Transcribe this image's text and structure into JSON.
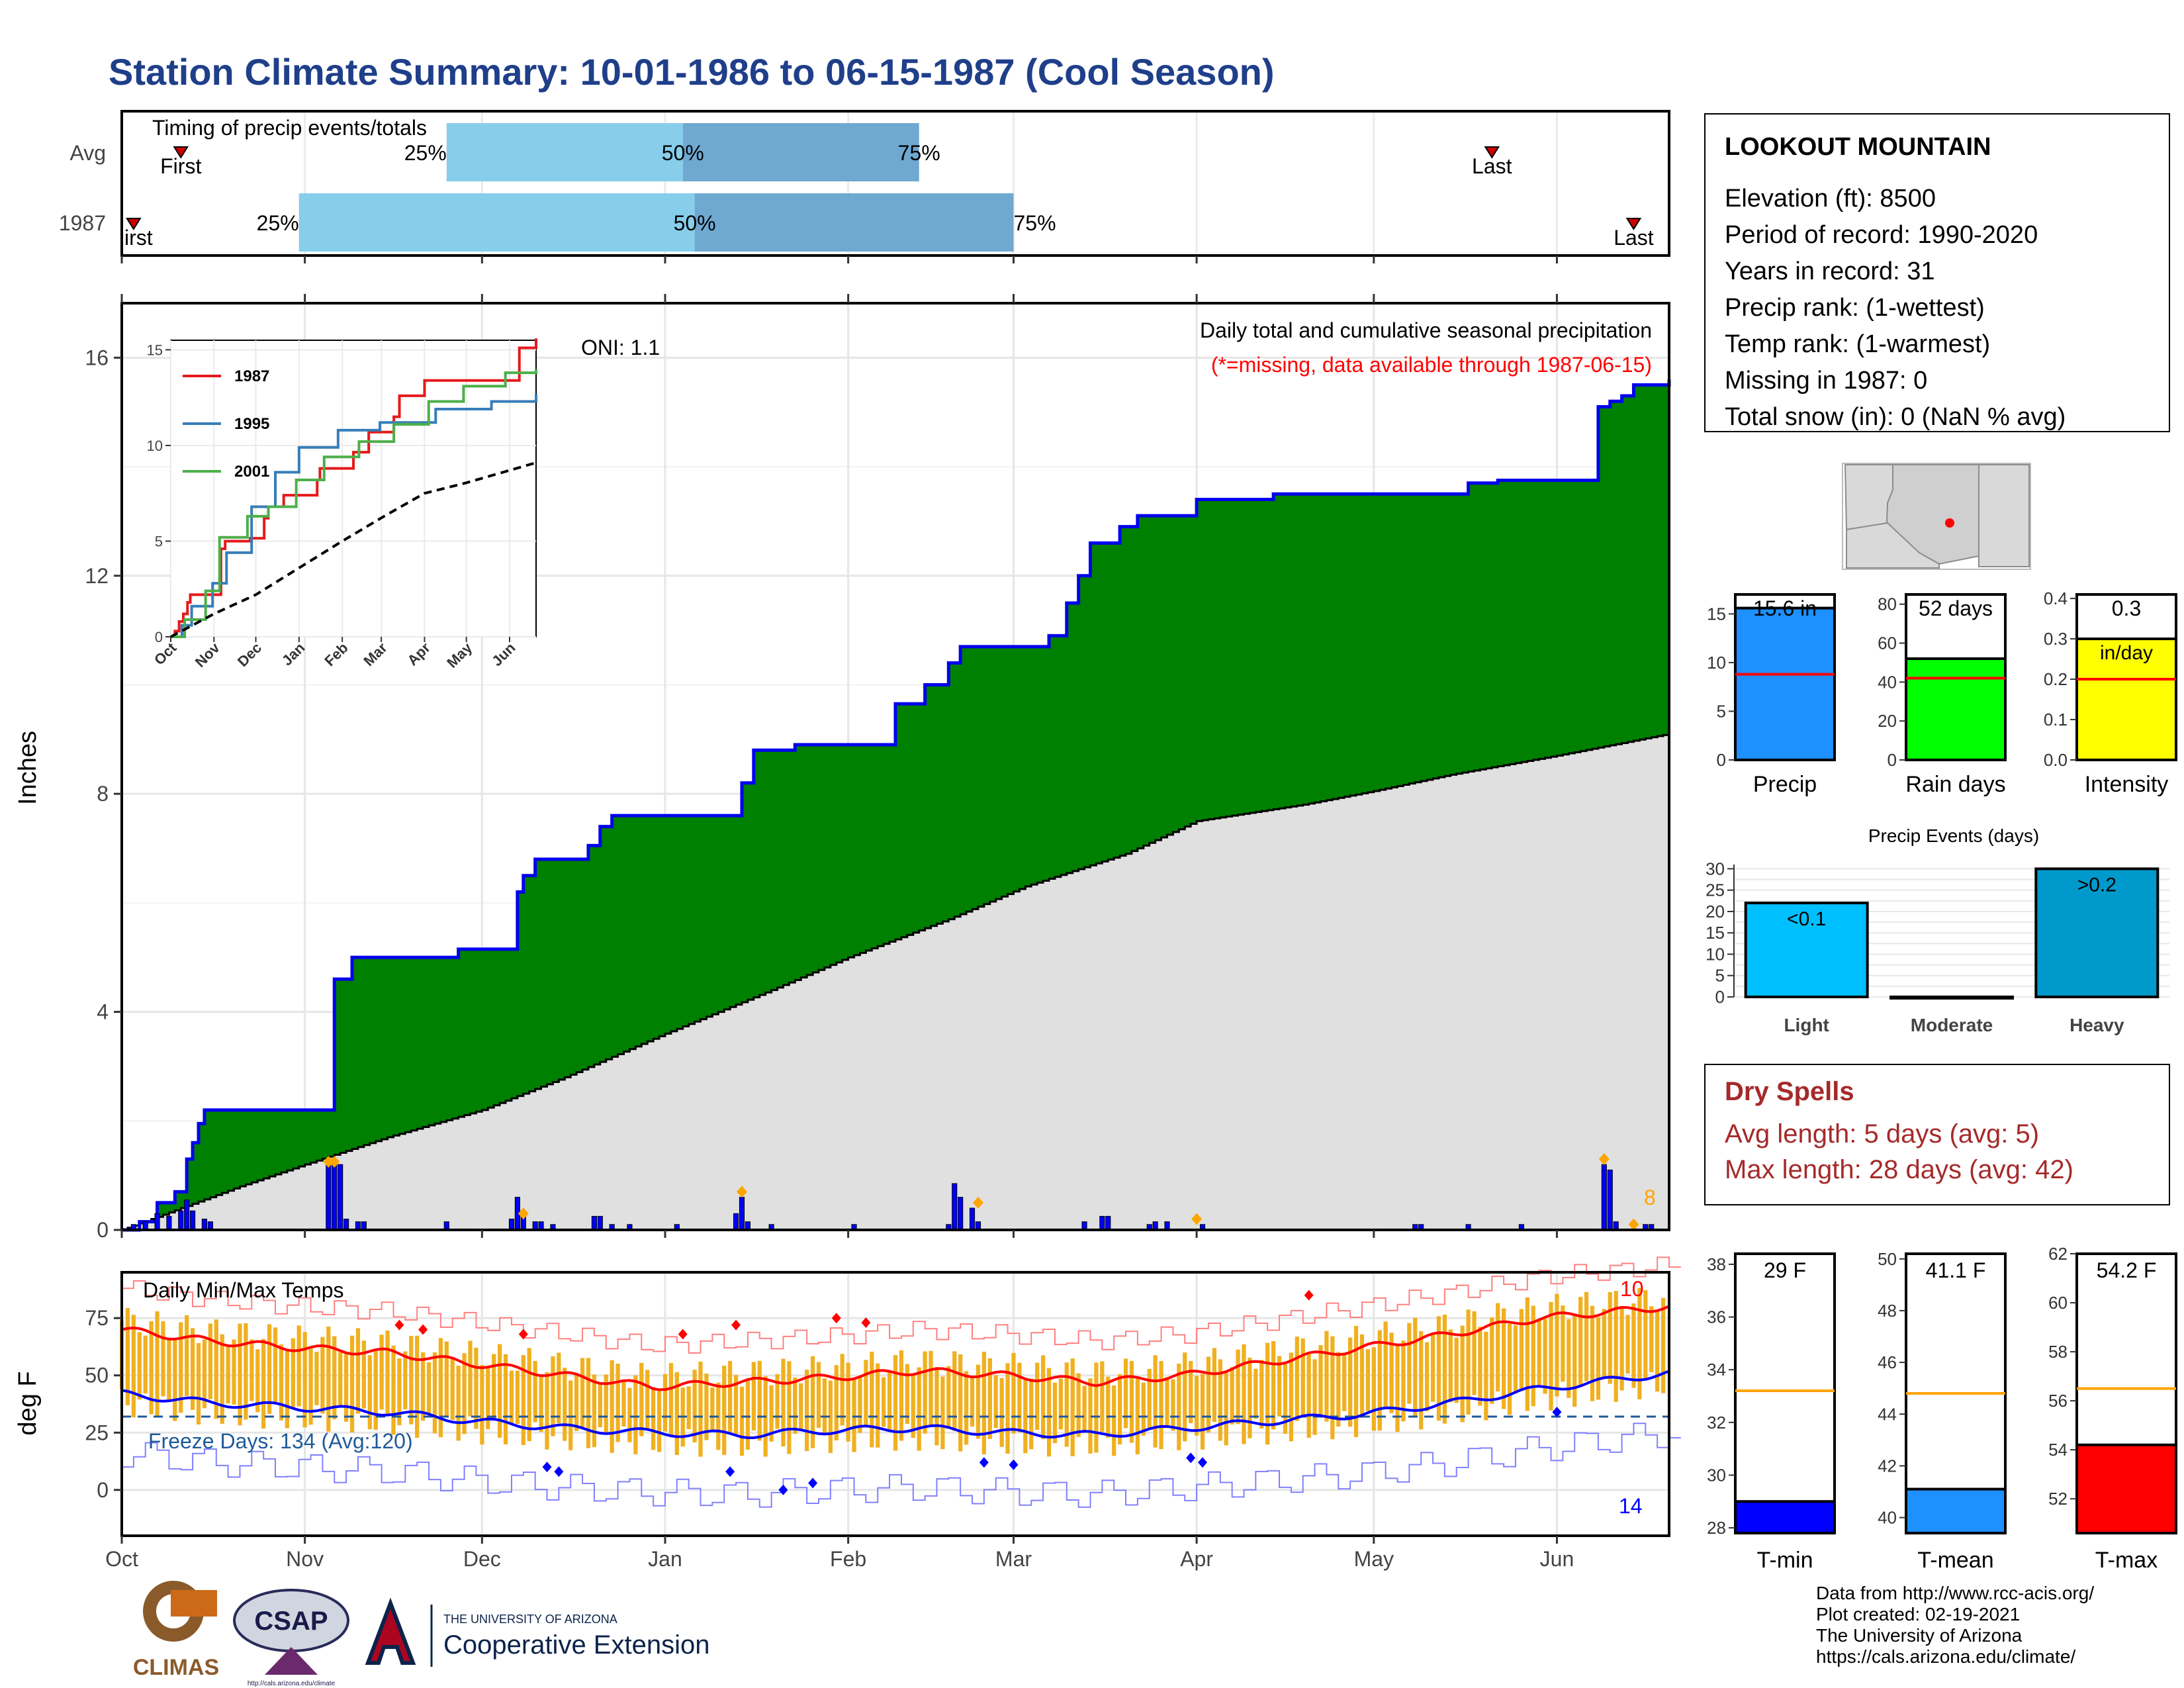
{
  "title": "Station Climate Summary: 10-01-1986 to 06-15-1987 (Cool Season)",
  "colors": {
    "title": "#1f3f8a",
    "cum_fill": "#008000",
    "cum_line": "#0000ee",
    "avg_fill": "#e0e0e0",
    "daily_bar": "#0000ff",
    "marker_orange": "#ffa500",
    "tmax": "#ff0000",
    "tmin": "#0000ff",
    "temp_bar": "#f0b020",
    "dry_spell": "#a52a2a",
    "light_blue": "#87ceeb",
    "mid_blue": "#6fa8d0"
  },
  "timing": {
    "label": "Timing of precip events/totals",
    "rows": [
      "Avg",
      "1987"
    ],
    "pct_labels": [
      "25%",
      "50%",
      "75%"
    ],
    "first_label": "First",
    "first_label_clipped": "irst",
    "last_label": "Last"
  },
  "main": {
    "ylabel": "Inches",
    "oni": "ONI: 1.1",
    "note1": "Daily total and cumulative seasonal precipitation",
    "note2": "(*=missing, data available through 1987-06-15)",
    "yticks": [
      "0",
      "4",
      "8",
      "12",
      "16"
    ],
    "count_label": "8"
  },
  "inset": {
    "yticks": [
      "0",
      "5",
      "10",
      "15"
    ],
    "months": [
      "Oct",
      "Nov",
      "Dec",
      "Jan",
      "Feb",
      "Mar",
      "Apr",
      "May",
      "Jun"
    ],
    "legend": [
      "1987",
      "1995",
      "2001"
    ]
  },
  "temp": {
    "label": "Daily Min/Max Temps",
    "ylabel": "deg F",
    "yticks": [
      "0",
      "25",
      "50",
      "75"
    ],
    "freeze": "Freeze Days: 134 (Avg:120)",
    "hot_count": "10",
    "cold_count": "14"
  },
  "months": [
    "Oct",
    "Nov",
    "Dec",
    "Jan",
    "Feb",
    "Mar",
    "Apr",
    "May",
    "Jun"
  ],
  "station": {
    "name": "LOOKOUT MOUNTAIN",
    "lines": [
      "Elevation (ft): 8500",
      "Period of record: 1990-2020",
      "Years in record: 31",
      "Precip rank:  (1-wettest)",
      "Temp rank:  (1-warmest)",
      "Missing in 1987: 0",
      "Total snow (in): 0 (NaN % avg)"
    ]
  },
  "mini_bars": [
    {
      "label": "Precip",
      "value_text": "15.6 in",
      "yticks": [
        "0",
        "5",
        "10",
        "15"
      ]
    },
    {
      "label": "Rain days",
      "value_text": "52 days",
      "yticks": [
        "0",
        "20",
        "40",
        "60",
        "80"
      ]
    },
    {
      "label": "Intensity",
      "value_text": "0.3",
      "unit": "in/day",
      "yticks": [
        "0.0",
        "0.1",
        "0.2",
        "0.3",
        "0.4"
      ]
    }
  ],
  "events": {
    "title": "Precip Events (days)",
    "yticks": [
      "0",
      "5",
      "10",
      "15",
      "20",
      "25",
      "30"
    ],
    "categories": [
      "Light",
      "Moderate",
      "Heavy"
    ],
    "bar_labels": [
      "<0.1",
      "",
      ">0.2"
    ]
  },
  "dry_spells": {
    "title": "Dry Spells",
    "avg": "Avg length: 5 days (avg: 5)",
    "max": "Max length: 28 days (avg: 42)"
  },
  "temp_bars": [
    {
      "label": "T-min",
      "value_text": "29 F",
      "yticks": [
        "28",
        "30",
        "32",
        "34",
        "36",
        "38"
      ]
    },
    {
      "label": "T-mean",
      "value_text": "41.1 F",
      "yticks": [
        "40",
        "42",
        "44",
        "46",
        "48",
        "50"
      ]
    },
    {
      "label": "T-max",
      "value_text": "54.2 F",
      "yticks": [
        "52",
        "54",
        "56",
        "58",
        "60",
        "62"
      ]
    }
  ],
  "footer": {
    "lines": [
      "Data from http://www.rcc-acis.org/",
      "Plot created: 02-19-2021",
      "The University of Arizona",
      "https://cals.arizona.edu/climate/"
    ],
    "logo_climas": "CLIMAS",
    "logo_csap": "CSAP",
    "logo_csap_url": "http://cals.arizona.edu/climate",
    "ua_line1": "THE UNIVERSITY OF ARIZONA",
    "ua_line2": "Cooperative Extension"
  },
  "chart_data": [
    {
      "type": "area",
      "name": "Daily total and cumulative seasonal precipitation",
      "x_unit": "day of season (0 = Oct 1)",
      "ylim": [
        0,
        17
      ],
      "cumulative_1987": [
        [
          0,
          0.0
        ],
        [
          3,
          0.15
        ],
        [
          6,
          0.5
        ],
        [
          9,
          0.7
        ],
        [
          11,
          1.3
        ],
        [
          12,
          1.6
        ],
        [
          13,
          1.95
        ],
        [
          14,
          2.2
        ],
        [
          35,
          2.2
        ],
        [
          36,
          4.6
        ],
        [
          39,
          5.0
        ],
        [
          56,
          5.0
        ],
        [
          57,
          5.15
        ],
        [
          66,
          5.15
        ],
        [
          67,
          6.2
        ],
        [
          68,
          6.5
        ],
        [
          70,
          6.8
        ],
        [
          78,
          6.8
        ],
        [
          79,
          7.05
        ],
        [
          81,
          7.4
        ],
        [
          83,
          7.6
        ],
        [
          104,
          7.6
        ],
        [
          105,
          8.2
        ],
        [
          107,
          8.8
        ],
        [
          114,
          8.9
        ],
        [
          130,
          8.9
        ],
        [
          131,
          9.65
        ],
        [
          136,
          10.0
        ],
        [
          140,
          10.4
        ],
        [
          142,
          10.7
        ],
        [
          153,
          10.7
        ],
        [
          157,
          10.9
        ],
        [
          160,
          11.5
        ],
        [
          162,
          12.0
        ],
        [
          164,
          12.6
        ],
        [
          169,
          12.9
        ],
        [
          172,
          13.1
        ],
        [
          182,
          13.4
        ],
        [
          195,
          13.5
        ],
        [
          228,
          13.5
        ],
        [
          228,
          13.7
        ],
        [
          233,
          13.75
        ],
        [
          249,
          13.75
        ],
        [
          250,
          15.1
        ],
        [
          252,
          15.2
        ],
        [
          254,
          15.3
        ],
        [
          256,
          15.5
        ],
        [
          262,
          15.6
        ]
      ],
      "average": [
        [
          0,
          0.0
        ],
        [
          10,
          0.4
        ],
        [
          20,
          0.8
        ],
        [
          31,
          1.2
        ],
        [
          45,
          1.7
        ],
        [
          61,
          2.2
        ],
        [
          75,
          2.8
        ],
        [
          92,
          3.6
        ],
        [
          110,
          4.4
        ],
        [
          123,
          5.0
        ],
        [
          140,
          5.7
        ],
        [
          153,
          6.3
        ],
        [
          170,
          6.9
        ],
        [
          182,
          7.5
        ],
        [
          200,
          7.8
        ],
        [
          212,
          8.05
        ],
        [
          225,
          8.35
        ],
        [
          243,
          8.7
        ],
        [
          262,
          9.1
        ]
      ],
      "daily_bars": [
        [
          2,
          0.1
        ],
        [
          4,
          0.15
        ],
        [
          6,
          0.3
        ],
        [
          8,
          0.25
        ],
        [
          10,
          0.35
        ],
        [
          11,
          0.55
        ],
        [
          12,
          0.35
        ],
        [
          14,
          0.2
        ],
        [
          15,
          0.15
        ],
        [
          35,
          1.2
        ],
        [
          36,
          1.2
        ],
        [
          37,
          1.2
        ],
        [
          38,
          0.2
        ],
        [
          40,
          0.15
        ],
        [
          41,
          0.15
        ],
        [
          55,
          0.15
        ],
        [
          66,
          0.2
        ],
        [
          67,
          0.6
        ],
        [
          68,
          0.3
        ],
        [
          70,
          0.15
        ],
        [
          71,
          0.15
        ],
        [
          73,
          0.1
        ],
        [
          80,
          0.25
        ],
        [
          81,
          0.25
        ],
        [
          83,
          0.1
        ],
        [
          86,
          0.1
        ],
        [
          94,
          0.1
        ],
        [
          104,
          0.3
        ],
        [
          105,
          0.6
        ],
        [
          106,
          0.15
        ],
        [
          110,
          0.1
        ],
        [
          124,
          0.1
        ],
        [
          140,
          0.1
        ],
        [
          141,
          0.85
        ],
        [
          142,
          0.6
        ],
        [
          144,
          0.4
        ],
        [
          145,
          0.15
        ],
        [
          163,
          0.15
        ],
        [
          166,
          0.25
        ],
        [
          167,
          0.25
        ],
        [
          174,
          0.1
        ],
        [
          175,
          0.15
        ],
        [
          177,
          0.15
        ],
        [
          183,
          0.1
        ],
        [
          219,
          0.1
        ],
        [
          220,
          0.1
        ],
        [
          228,
          0.1
        ],
        [
          237,
          0.1
        ],
        [
          251,
          1.2
        ],
        [
          252,
          1.1
        ],
        [
          253,
          0.15
        ],
        [
          258,
          0.1
        ],
        [
          259,
          0.1
        ]
      ],
      "orange_markers": [
        [
          35,
          1.25
        ],
        [
          36,
          1.25
        ],
        [
          68,
          0.3
        ],
        [
          105,
          0.7
        ],
        [
          145,
          0.5
        ],
        [
          182,
          0.2
        ],
        [
          251,
          1.3
        ],
        [
          256,
          0.1
        ]
      ]
    },
    {
      "type": "line",
      "name": "Cumulative precipitation (inset)",
      "ylim": [
        0,
        15.5
      ],
      "series": [
        {
          "name": "1987",
          "points": [
            [
              0,
              0
            ],
            [
              3,
              0.3
            ],
            [
              6,
              0.8
            ],
            [
              9,
              1.2
            ],
            [
              12,
              1.8
            ],
            [
              14,
              2.2
            ],
            [
              36,
              4.6
            ],
            [
              39,
              5.0
            ],
            [
              57,
              5.15
            ],
            [
              67,
              6.2
            ],
            [
              70,
              6.8
            ],
            [
              81,
              7.4
            ],
            [
              105,
              8.2
            ],
            [
              107,
              8.8
            ],
            [
              131,
              9.65
            ],
            [
              142,
              10.7
            ],
            [
              160,
              11.5
            ],
            [
              164,
              12.6
            ],
            [
              182,
              13.4
            ],
            [
              250,
              15.1
            ],
            [
              262,
              15.6
            ]
          ]
        },
        {
          "name": "1995",
          "points": [
            [
              0,
              0
            ],
            [
              8,
              0.6
            ],
            [
              15,
              1.6
            ],
            [
              30,
              2.8
            ],
            [
              40,
              4.4
            ],
            [
              58,
              6.8
            ],
            [
              75,
              8.6
            ],
            [
              92,
              9.9
            ],
            [
              120,
              10.8
            ],
            [
              150,
              11.2
            ],
            [
              190,
              11.9
            ],
            [
              230,
              12.3
            ],
            [
              262,
              12.7
            ]
          ]
        },
        {
          "name": "2001",
          "points": [
            [
              0,
              0
            ],
            [
              10,
              0.9
            ],
            [
              25,
              2.4
            ],
            [
              35,
              5.2
            ],
            [
              55,
              6.3
            ],
            [
              70,
              6.8
            ],
            [
              90,
              8.2
            ],
            [
              110,
              9.4
            ],
            [
              135,
              10.2
            ],
            [
              160,
              11.1
            ],
            [
              185,
              12.3
            ],
            [
              210,
              13.1
            ],
            [
              240,
              13.8
            ],
            [
              262,
              14.0
            ]
          ]
        },
        {
          "name": "average",
          "points": [
            [
              0,
              0.0
            ],
            [
              31,
              1.2
            ],
            [
              61,
              2.2
            ],
            [
              92,
              3.6
            ],
            [
              123,
              5.0
            ],
            [
              153,
              6.3
            ],
            [
              182,
              7.5
            ],
            [
              212,
              8.05
            ],
            [
              243,
              8.7
            ],
            [
              262,
              9.1
            ]
          ]
        }
      ]
    },
    {
      "type": "line",
      "name": "Daily Min/Max Temps",
      "ylim": [
        -20,
        95
      ],
      "series": [
        {
          "name": "max",
          "points": [
            [
              0,
              70
            ],
            [
              15,
              65
            ],
            [
              30,
              62
            ],
            [
              45,
              60
            ],
            [
              60,
              55
            ],
            [
              75,
              50
            ],
            [
              90,
              45
            ],
            [
              105,
              47
            ],
            [
              120,
              49
            ],
            [
              135,
              52
            ],
            [
              150,
              50
            ],
            [
              165,
              47
            ],
            [
              180,
              50
            ],
            [
              195,
              56
            ],
            [
              210,
              62
            ],
            [
              225,
              68
            ],
            [
              240,
              75
            ],
            [
              262,
              80
            ]
          ]
        },
        {
          "name": "min",
          "points": [
            [
              0,
              42
            ],
            [
              15,
              38
            ],
            [
              30,
              36
            ],
            [
              45,
              34
            ],
            [
              60,
              30
            ],
            [
              75,
              27
            ],
            [
              90,
              25
            ],
            [
              105,
              24
            ],
            [
              120,
              26
            ],
            [
              135,
              27
            ],
            [
              150,
              25
            ],
            [
              165,
              24
            ],
            [
              180,
              27
            ],
            [
              195,
              30
            ],
            [
              210,
              33
            ],
            [
              225,
              38
            ],
            [
              240,
              44
            ],
            [
              262,
              51
            ]
          ]
        }
      ],
      "freeze_line": 32
    },
    {
      "type": "bar",
      "categories": [
        "Precip"
      ],
      "values": [
        15.6
      ],
      "average": 8.8,
      "ylim": [
        0,
        17
      ]
    },
    {
      "type": "bar",
      "categories": [
        "Rain days"
      ],
      "values": [
        52
      ],
      "average": 42,
      "ylim": [
        0,
        85
      ]
    },
    {
      "type": "bar",
      "categories": [
        "Intensity"
      ],
      "values": [
        0.3
      ],
      "average": 0.2,
      "ylim": [
        0,
        0.41
      ]
    },
    {
      "type": "bar",
      "title": "Precip Events (days)",
      "categories": [
        "Light",
        "Moderate",
        "Heavy"
      ],
      "values": [
        22,
        0,
        30
      ],
      "ylim": [
        0,
        31
      ]
    },
    {
      "type": "bar",
      "categories": [
        "T-min"
      ],
      "values": [
        29
      ],
      "average": 33.2,
      "ylim": [
        27.8,
        38.4
      ]
    },
    {
      "type": "bar",
      "categories": [
        "T-mean"
      ],
      "values": [
        41.1
      ],
      "average": 44.8,
      "ylim": [
        39.4,
        50.2
      ]
    },
    {
      "type": "bar",
      "categories": [
        "T-max"
      ],
      "values": [
        54.2
      ],
      "average": 56.5,
      "ylim": [
        50.6,
        62.0
      ]
    }
  ]
}
